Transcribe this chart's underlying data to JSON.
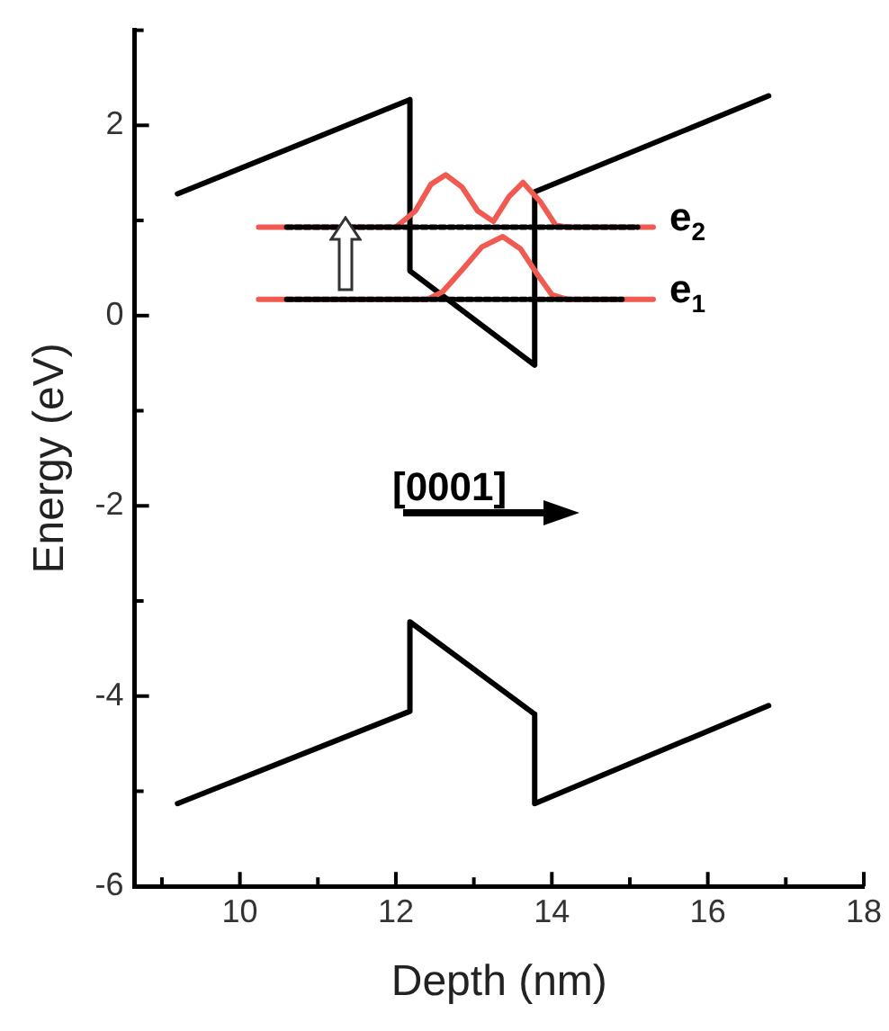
{
  "chart_data": {
    "type": "line",
    "xlabel": "Depth (nm)",
    "ylabel": "Energy (eV)",
    "xlim": [
      8.65,
      18
    ],
    "ylim": [
      -6,
      3
    ],
    "xticks": [
      {
        "value": 9,
        "label": null
      },
      10,
      {
        "value": 11,
        "label": null
      },
      12,
      {
        "value": 13,
        "label": null
      },
      14,
      {
        "value": 15,
        "label": null
      },
      16,
      {
        "value": 17,
        "label": null
      },
      18
    ],
    "yticks": [
      -6,
      {
        "value": -5,
        "label": null
      },
      -4,
      {
        "value": -3,
        "label": null
      },
      -2,
      {
        "value": -1,
        "label": null
      },
      0,
      {
        "value": 1,
        "label": null
      },
      2,
      {
        "value": 3,
        "label": null
      }
    ],
    "grid": false,
    "legend": false,
    "marker": "none",
    "line_style": "solid",
    "series": [
      {
        "color": "#000000",
        "x": [
          9.2,
          12.18,
          12.18,
          13.78,
          13.78,
          16.78
        ],
        "values": [
          1.28,
          2.27,
          0.47,
          -0.52,
          1.3,
          2.31
        ]
      },
      {
        "color": "#000000",
        "x": [
          9.2,
          12.18,
          12.18,
          13.78,
          13.78,
          16.78
        ],
        "values": [
          -5.13,
          -4.16,
          -3.22,
          -4.19,
          -5.13,
          -4.1
        ]
      },
      {
        "color": "#f05a50",
        "x": [
          10.24,
          12.0,
          12.25,
          12.45,
          12.64,
          12.85,
          13.05,
          13.25,
          13.45,
          13.63,
          13.85,
          14.05,
          14.2,
          15.3
        ],
        "values": [
          0.93,
          0.93,
          1.1,
          1.38,
          1.48,
          1.35,
          1.1,
          0.99,
          1.25,
          1.4,
          1.2,
          0.95,
          0.93,
          0.93
        ]
      },
      {
        "color": "#f05a50",
        "x": [
          10.24,
          12.4,
          12.6,
          12.85,
          13.1,
          13.37,
          13.6,
          13.8,
          14.0,
          14.2,
          15.3
        ],
        "values": [
          0.17,
          0.17,
          0.25,
          0.48,
          0.72,
          0.83,
          0.7,
          0.45,
          0.22,
          0.17,
          0.17
        ]
      },
      {
        "color": "#000000",
        "line_style": "dotted",
        "x": [
          10.6,
          15.1
        ],
        "values": [
          0.93,
          0.93
        ]
      },
      {
        "color": "#000000",
        "line_style": "dotted",
        "x": [
          10.6,
          14.9
        ],
        "values": [
          0.17,
          0.17
        ]
      }
    ],
    "annotations": [
      "e$_{2}$",
      "e$_{1}$",
      "[0001]"
    ]
  }
}
